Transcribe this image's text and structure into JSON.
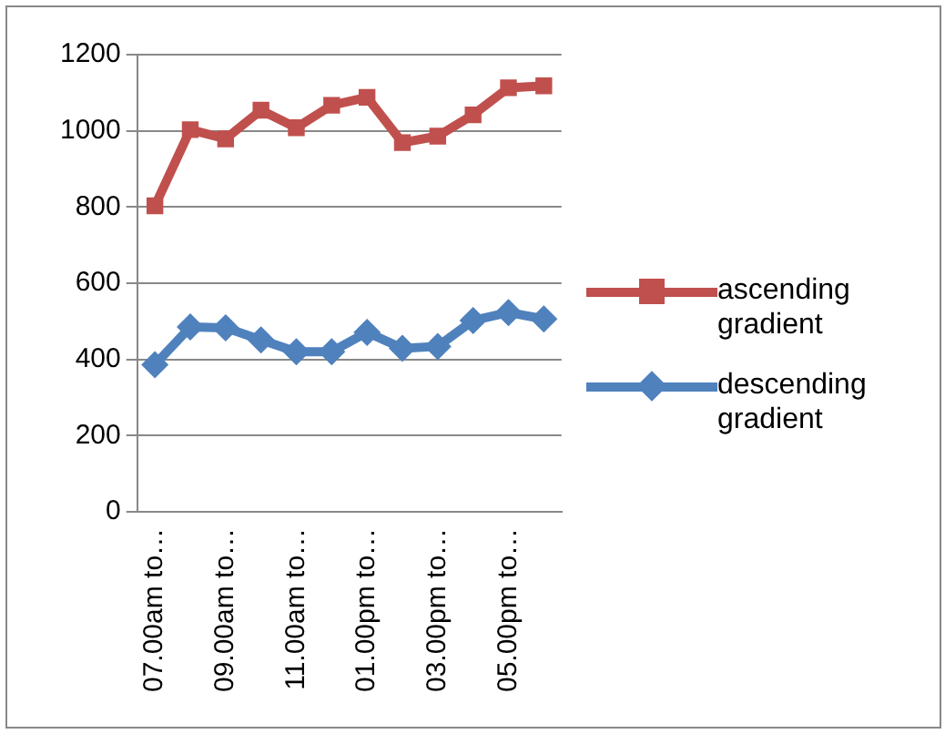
{
  "chart_data": {
    "type": "line",
    "categories": [
      "07.00am to…",
      null,
      "09.00am to…",
      null,
      "11.00am to…",
      null,
      "01.00pm to…",
      null,
      "03.00pm to…",
      null,
      "05.00pm to…",
      null
    ],
    "series": [
      {
        "name": "ascending gradient",
        "color": "#c0504d",
        "marker": "square",
        "values": [
          803,
          1003,
          979,
          1054,
          1008,
          1067,
          1088,
          969,
          986,
          1042,
          1113,
          1118
        ]
      },
      {
        "name": "descending gradient",
        "color": "#4f81bd",
        "marker": "diamond",
        "values": [
          386,
          485,
          483,
          451,
          420,
          420,
          471,
          429,
          434,
          502,
          523,
          506
        ]
      }
    ],
    "ylim": [
      0,
      1200
    ],
    "yticks": [
      0,
      200,
      400,
      600,
      800,
      1000,
      1200
    ],
    "grid": "y",
    "legend": "right"
  }
}
